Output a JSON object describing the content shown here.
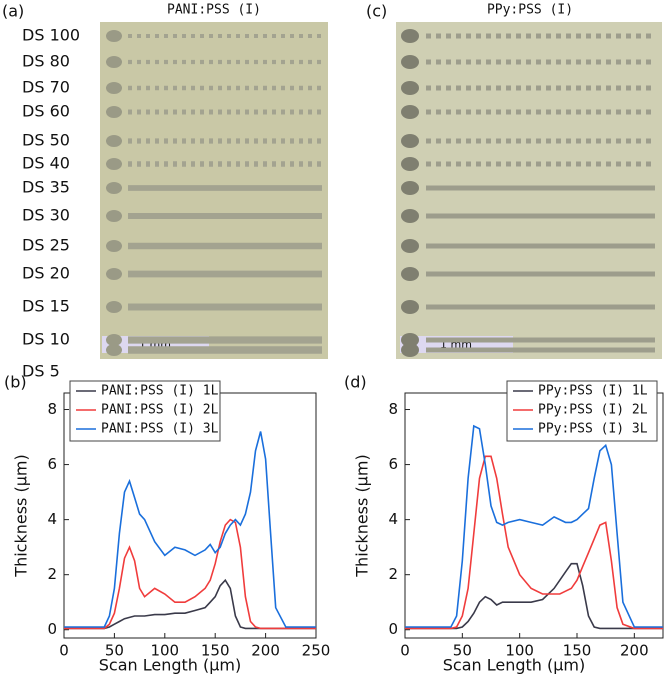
{
  "micrographs": [
    {
      "label": "(a)",
      "title": "PANI:PSS (I)",
      "rows": [
        "DS 100",
        "DS 80",
        "DS 70",
        "DS 60",
        "DS 50",
        "DS 40",
        "DS 35",
        "DS 30",
        "DS 25",
        "DS 20",
        "DS 15",
        "DS 10",
        "DS 5"
      ],
      "scale_bar": "1 mm"
    },
    {
      "label": "(c)",
      "title": "PPy:PSS (I)",
      "scale_bar": "1 mm"
    }
  ],
  "chart_data": [
    {
      "type": "line",
      "panel_label": "(b)",
      "x_label": "Scan Length (μm)",
      "y_label": "Thickness (μm)",
      "x": [
        0,
        40,
        45,
        50,
        55,
        60,
        65,
        70,
        75,
        80,
        90,
        100,
        110,
        120,
        130,
        140,
        145,
        150,
        155,
        160,
        165,
        170,
        175,
        180,
        185,
        190,
        195,
        200,
        205,
        210,
        220,
        250
      ],
      "xlim": [
        0,
        250
      ],
      "xticks": [
        0,
        50,
        100,
        150,
        200,
        250
      ],
      "ylim": [
        -0.3,
        8.6
      ],
      "yticks": [
        0,
        2,
        4,
        6,
        8
      ],
      "legend": "top-left",
      "series": [
        {
          "name": "PANI:PSS (I) 1L",
          "color": "#3a3a4a",
          "values": [
            0.05,
            0.05,
            0.1,
            0.2,
            0.3,
            0.4,
            0.45,
            0.5,
            0.5,
            0.5,
            0.55,
            0.55,
            0.6,
            0.6,
            0.7,
            0.8,
            1.0,
            1.2,
            1.6,
            1.8,
            1.5,
            0.5,
            0.1,
            0.05,
            0.05,
            0.05,
            0.05,
            0.05,
            0.05,
            0.05,
            0.05,
            0.05
          ]
        },
        {
          "name": "PANI:PSS (I) 2L",
          "color": "#f03c3c",
          "values": [
            0.05,
            0.05,
            0.2,
            0.6,
            1.5,
            2.6,
            3.0,
            2.5,
            1.5,
            1.2,
            1.5,
            1.3,
            1.0,
            1.0,
            1.2,
            1.5,
            1.8,
            2.4,
            3.2,
            3.8,
            4.0,
            3.9,
            3.0,
            1.2,
            0.3,
            0.1,
            0.05,
            0.05,
            0.05,
            0.05,
            0.05,
            0.05
          ]
        },
        {
          "name": "PANI:PSS (I) 3L",
          "color": "#1a6fdc",
          "values": [
            0.1,
            0.1,
            0.5,
            1.5,
            3.5,
            5.0,
            5.4,
            4.8,
            4.2,
            4.0,
            3.2,
            2.7,
            3.0,
            2.9,
            2.7,
            2.9,
            3.1,
            2.8,
            3.0,
            3.5,
            3.8,
            4.0,
            3.8,
            4.2,
            5.0,
            6.5,
            7.2,
            6.2,
            3.5,
            0.8,
            0.1,
            0.1
          ]
        }
      ]
    },
    {
      "type": "line",
      "panel_label": "(d)",
      "x_label": "Scan Length (μm)",
      "y_label": "Thickness (μm)",
      "x": [
        0,
        40,
        45,
        50,
        55,
        60,
        65,
        70,
        75,
        80,
        85,
        90,
        100,
        110,
        120,
        130,
        135,
        140,
        145,
        150,
        155,
        160,
        165,
        170,
        175,
        180,
        185,
        190,
        200,
        225
      ],
      "xlim": [
        0,
        225
      ],
      "xticks": [
        0,
        50,
        100,
        150,
        200
      ],
      "ylim": [
        -0.3,
        8.6
      ],
      "yticks": [
        0,
        2,
        4,
        6,
        8
      ],
      "legend": "top-right",
      "series": [
        {
          "name": "PPy:PSS (I) 1L",
          "color": "#3a3a4a",
          "values": [
            0.05,
            0.05,
            0.05,
            0.1,
            0.3,
            0.6,
            1.0,
            1.2,
            1.1,
            0.9,
            1.0,
            1.0,
            1.0,
            1.0,
            1.1,
            1.5,
            1.8,
            2.1,
            2.4,
            2.4,
            1.6,
            0.5,
            0.1,
            0.05,
            0.05,
            0.05,
            0.05,
            0.05,
            0.05,
            0.05
          ]
        },
        {
          "name": "PPy:PSS (I) 2L",
          "color": "#f03c3c",
          "values": [
            0.05,
            0.05,
            0.1,
            0.5,
            1.5,
            3.5,
            5.5,
            6.3,
            6.3,
            5.5,
            4.2,
            3.0,
            2.0,
            1.5,
            1.3,
            1.3,
            1.3,
            1.4,
            1.5,
            1.8,
            2.3,
            2.8,
            3.3,
            3.8,
            3.9,
            2.5,
            0.8,
            0.2,
            0.05,
            0.05
          ]
        },
        {
          "name": "PPy:PSS (I) 3L",
          "color": "#1a6fdc",
          "values": [
            0.1,
            0.1,
            0.5,
            2.5,
            5.5,
            7.4,
            7.3,
            6.0,
            4.5,
            3.9,
            3.8,
            3.9,
            4.0,
            3.9,
            3.8,
            4.1,
            4.0,
            3.9,
            3.9,
            4.0,
            4.2,
            4.4,
            5.5,
            6.5,
            6.7,
            6.0,
            3.5,
            1.0,
            0.1,
            0.1
          ]
        }
      ]
    }
  ]
}
